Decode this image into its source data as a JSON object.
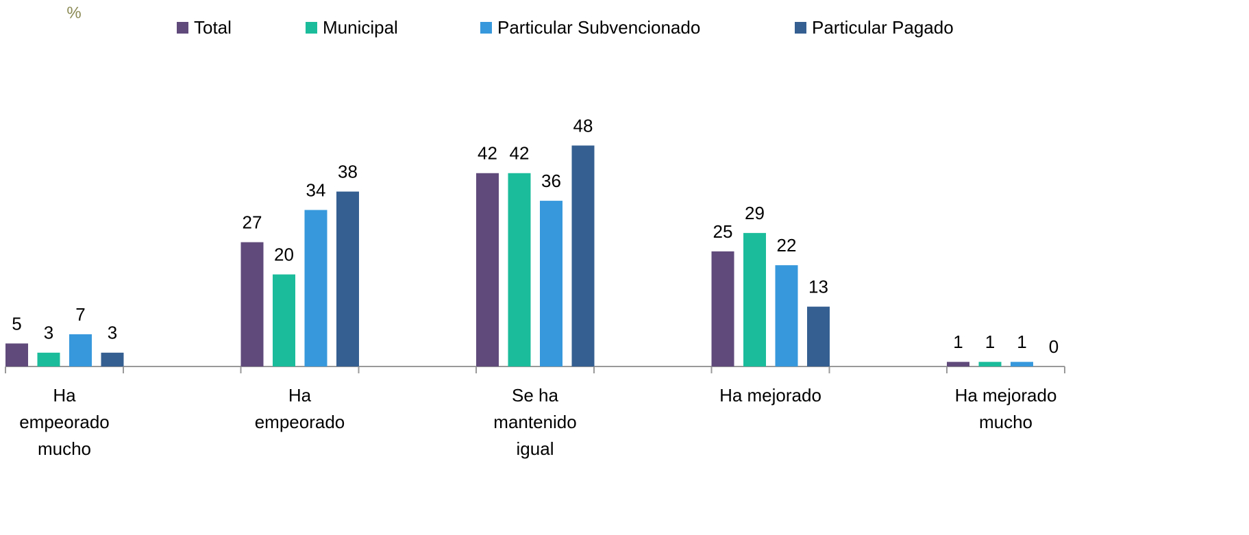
{
  "chart_data": {
    "type": "bar",
    "unit_label": "%",
    "categories": [
      "Ha\nempeorado\nmucho",
      "Ha\nempeorado",
      "Se ha\nmantenido\nigual",
      "Ha mejorado",
      "Ha mejorado\nmucho"
    ],
    "series": [
      {
        "name": "Total",
        "color": "#5f4a7b",
        "values": [
          5,
          27,
          42,
          25,
          1
        ]
      },
      {
        "name": "Municipal",
        "color": "#1bbc9b",
        "values": [
          3,
          20,
          42,
          29,
          1
        ]
      },
      {
        "name": "Particular Subvencionado",
        "color": "#3799db",
        "values": [
          7,
          34,
          36,
          22,
          1
        ]
      },
      {
        "name": "Particular Pagado",
        "color": "#355f90",
        "values": [
          3,
          38,
          48,
          13,
          0
        ]
      }
    ],
    "ylim": [
      0,
      50
    ],
    "legend": "top"
  }
}
